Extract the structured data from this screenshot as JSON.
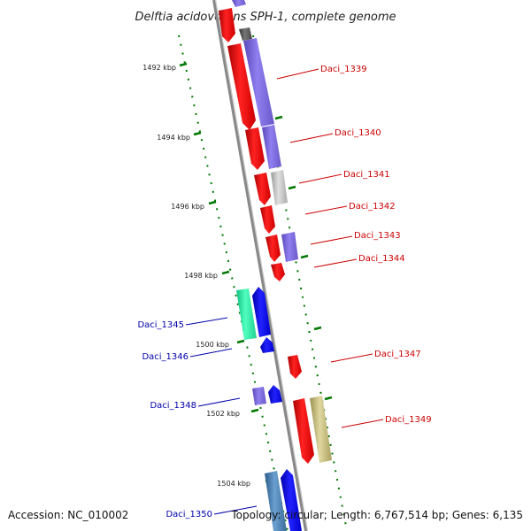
{
  "title": "Delftia acidovorans SPH-1, complete genome",
  "footer": {
    "accession": "Accession: NC_010002",
    "summary": "Topology: circular; Length: 6,767,514 bp; Genes: 6,135"
  },
  "ticks": [
    "1492 kbp",
    "1494 kbp",
    "1496 kbp",
    "1498 kbp",
    "1500 kbp",
    "1502 kbp",
    "1504 kbp"
  ],
  "gene_labels": {
    "Daci_1339": "Daci_1339",
    "Daci_1340": "Daci_1340",
    "Daci_1341": "Daci_1341",
    "Daci_1342": "Daci_1342",
    "Daci_1343": "Daci_1343",
    "Daci_1344": "Daci_1344",
    "Daci_1345": "Daci_1345",
    "Daci_1346": "Daci_1346",
    "Daci_1347": "Daci_1347",
    "Daci_1348": "Daci_1348",
    "Daci_1349": "Daci_1349",
    "Daci_1350": "Daci_1350"
  },
  "colors": {
    "backbone": "#888888",
    "gene_red": "#ff0000",
    "gene_blue": "#0000ff",
    "purple": "#7b68d8",
    "grey": "#c8c8c8",
    "dark": "#555555",
    "teal": "#22ffaa",
    "steel": "#4682b4",
    "olive": "#c8c080",
    "tick_green": "#007700"
  }
}
